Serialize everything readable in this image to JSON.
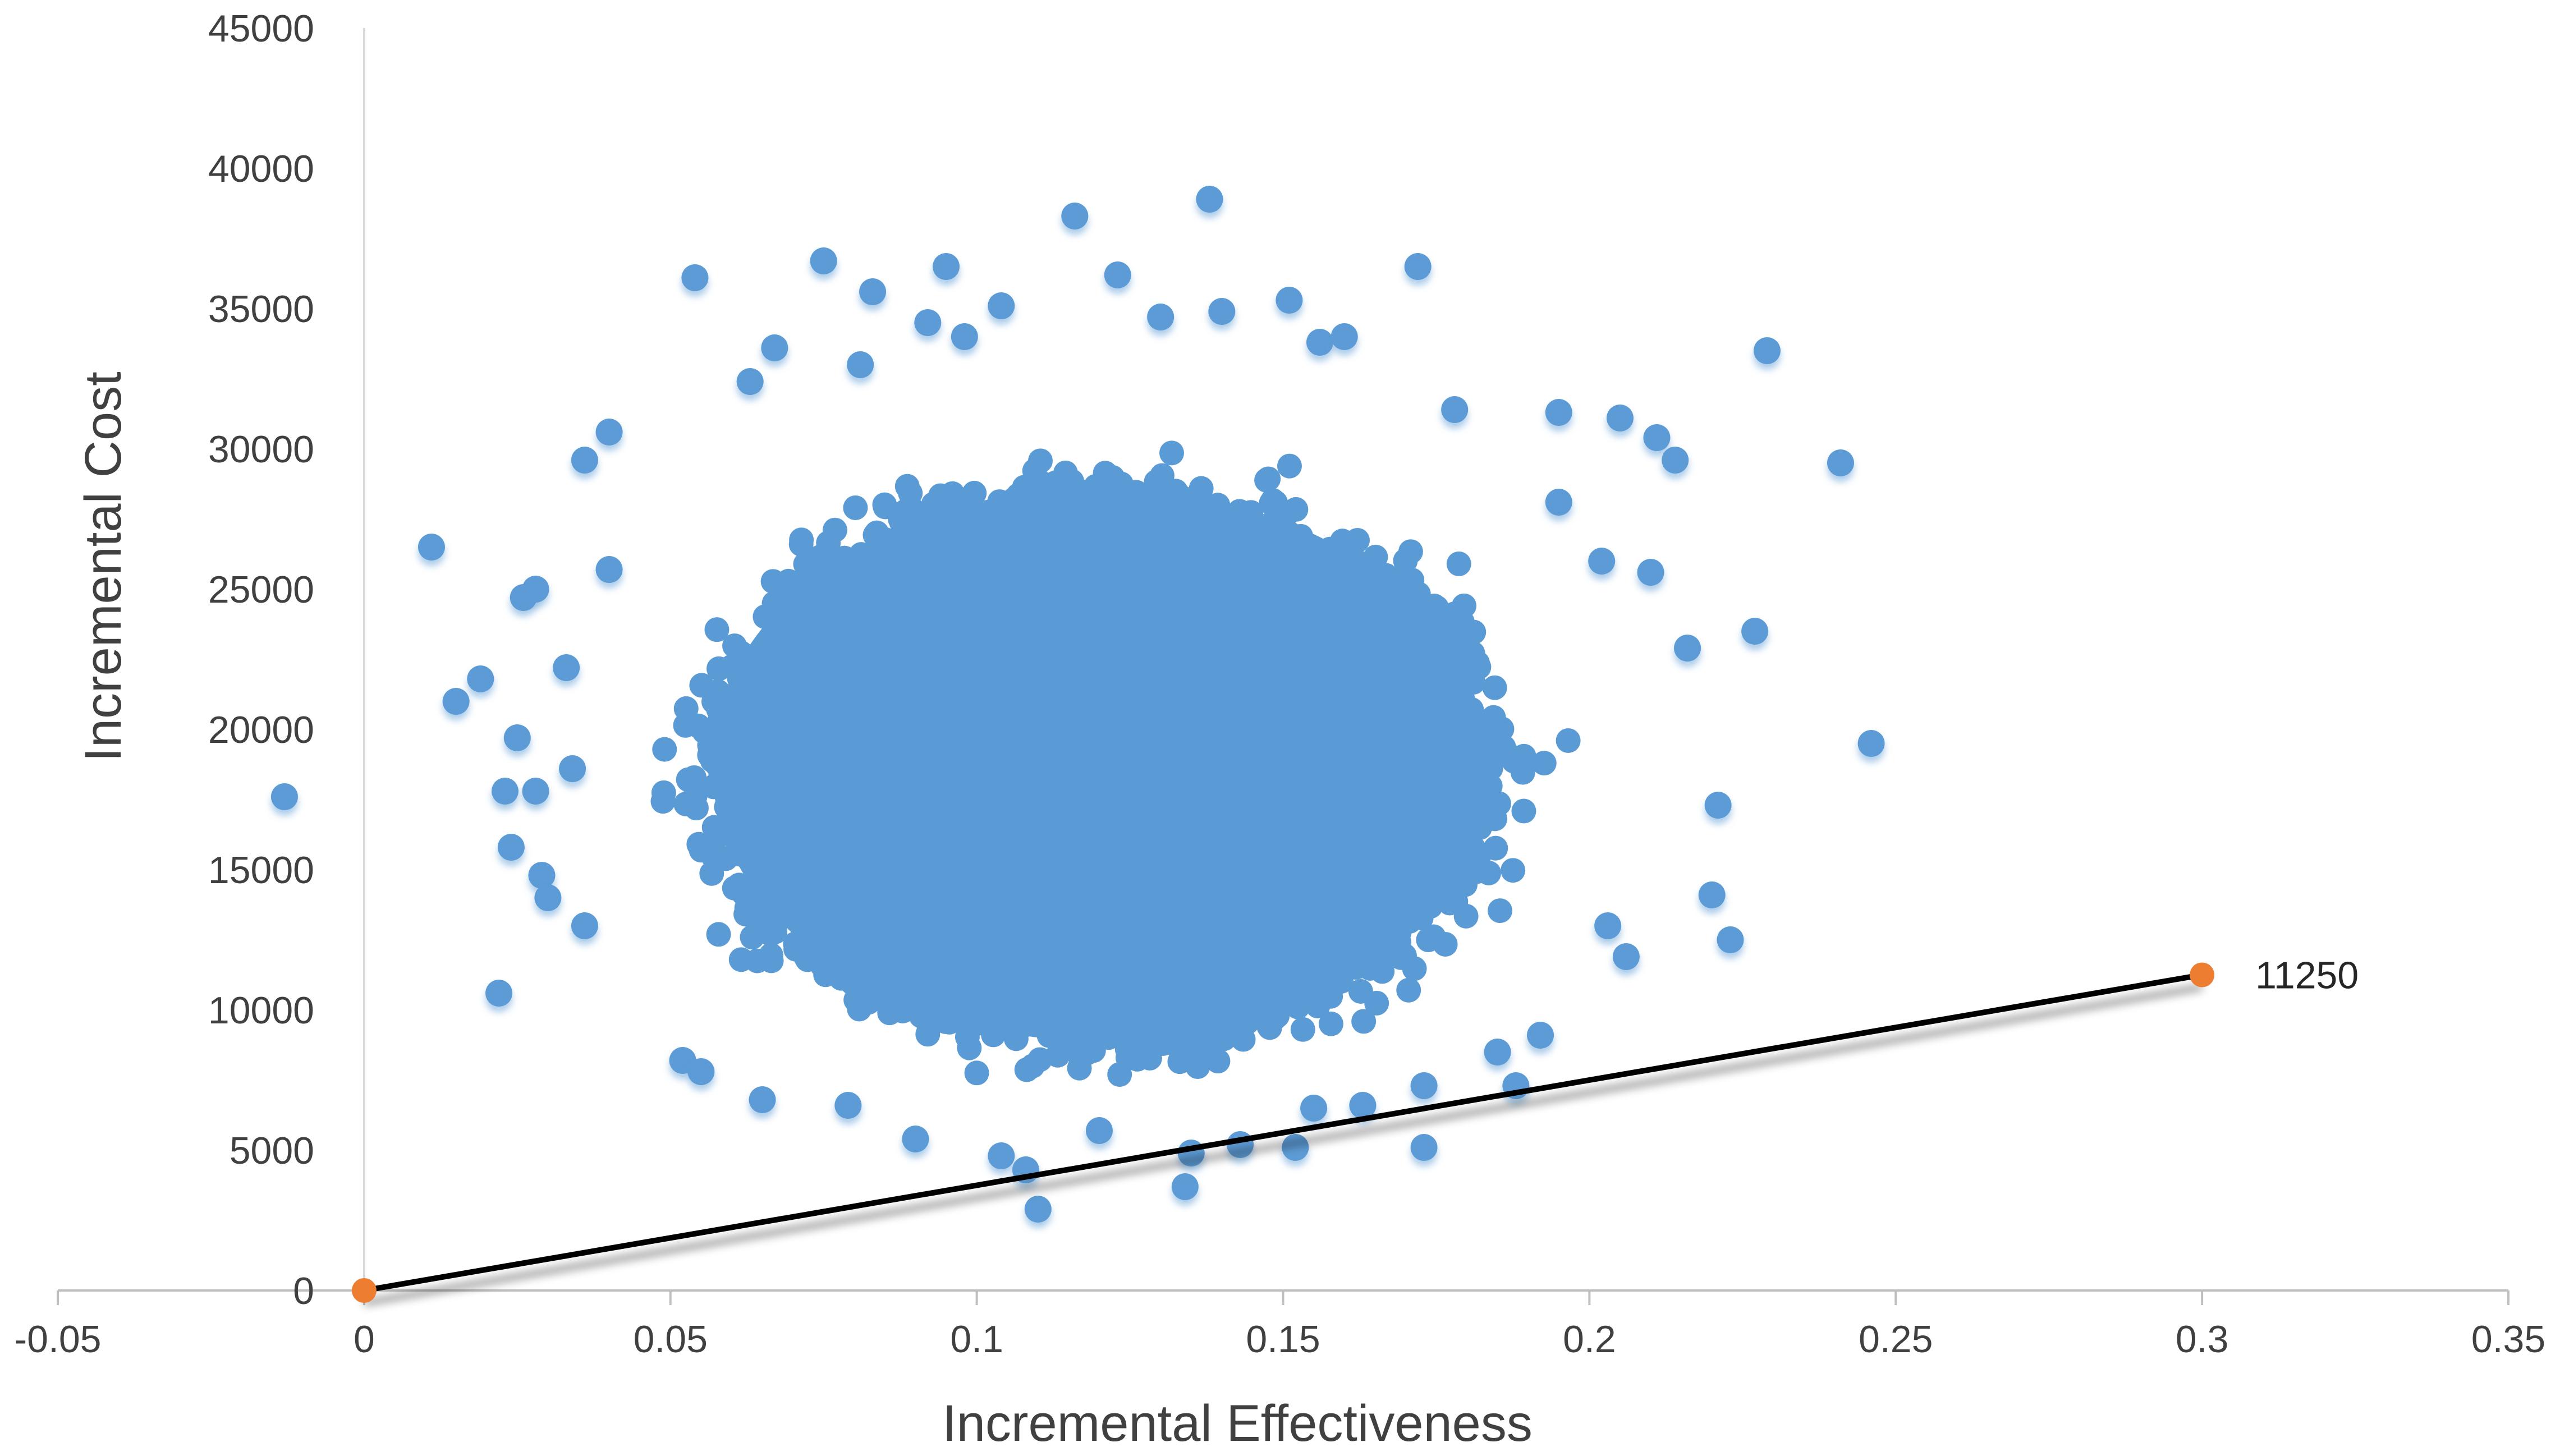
{
  "chart_data": {
    "type": "scatter",
    "title": "",
    "xlabel": "Incremental Effectiveness",
    "ylabel": "Incremental Cost",
    "xlim": [
      -0.05,
      0.35
    ],
    "ylim": [
      0,
      45000
    ],
    "x_ticks": [
      "-0.05",
      "0",
      "0.05",
      "0.1",
      "0.15",
      "0.2",
      "0.25",
      "0.3",
      "0.35"
    ],
    "y_ticks": [
      "0",
      "5000",
      "10000",
      "15000",
      "20000",
      "25000",
      "30000",
      "35000",
      "40000",
      "45000"
    ],
    "grid": false,
    "legend": "none",
    "colors": {
      "scatter": "#5b9bd5",
      "threshold_line": "#000000",
      "threshold_points": "#ed7d31"
    },
    "series": [
      {
        "type": "scatter",
        "description_points": "outlying simulated points (dense cloud centred near x=0.12, y=18000)",
        "cloud": {
          "cx": 0.12,
          "cy": 18750,
          "rx": 0.068,
          "ry": 10600
        },
        "points": [
          [
            -0.013,
            17600
          ],
          [
            0.011,
            26500
          ],
          [
            0.015,
            21000
          ],
          [
            0.019,
            21800
          ],
          [
            0.022,
            10600
          ],
          [
            0.023,
            17800
          ],
          [
            0.024,
            15800
          ],
          [
            0.025,
            19700
          ],
          [
            0.026,
            24700
          ],
          [
            0.028,
            25000
          ],
          [
            0.028,
            17800
          ],
          [
            0.029,
            14800
          ],
          [
            0.03,
            14000
          ],
          [
            0.033,
            22200
          ],
          [
            0.034,
            18600
          ],
          [
            0.036,
            29600
          ],
          [
            0.036,
            13000
          ],
          [
            0.04,
            30600
          ],
          [
            0.04,
            25700
          ],
          [
            0.052,
            8200
          ],
          [
            0.054,
            36100
          ],
          [
            0.055,
            7800
          ],
          [
            0.063,
            32400
          ],
          [
            0.065,
            6800
          ],
          [
            0.067,
            33600
          ],
          [
            0.075,
            36700
          ],
          [
            0.079,
            6600
          ],
          [
            0.081,
            33000
          ],
          [
            0.083,
            35600
          ],
          [
            0.09,
            5400
          ],
          [
            0.092,
            34500
          ],
          [
            0.095,
            36500
          ],
          [
            0.098,
            34000
          ],
          [
            0.104,
            35100
          ],
          [
            0.104,
            4800
          ],
          [
            0.108,
            4300
          ],
          [
            0.11,
            2900
          ],
          [
            0.116,
            38300
          ],
          [
            0.12,
            5700
          ],
          [
            0.123,
            36200
          ],
          [
            0.13,
            34700
          ],
          [
            0.134,
            3700
          ],
          [
            0.135,
            4900
          ],
          [
            0.138,
            38900
          ],
          [
            0.14,
            34900
          ],
          [
            0.143,
            5200
          ],
          [
            0.151,
            35300
          ],
          [
            0.152,
            5100
          ],
          [
            0.155,
            6500
          ],
          [
            0.156,
            33800
          ],
          [
            0.16,
            34000
          ],
          [
            0.163,
            6600
          ],
          [
            0.172,
            36500
          ],
          [
            0.173,
            5100
          ],
          [
            0.173,
            7300
          ],
          [
            0.178,
            31400
          ],
          [
            0.185,
            8500
          ],
          [
            0.188,
            7300
          ],
          [
            0.192,
            9100
          ],
          [
            0.195,
            28100
          ],
          [
            0.195,
            31300
          ],
          [
            0.202,
            26000
          ],
          [
            0.203,
            13000
          ],
          [
            0.205,
            31100
          ],
          [
            0.206,
            11900
          ],
          [
            0.21,
            25600
          ],
          [
            0.211,
            30400
          ],
          [
            0.214,
            29600
          ],
          [
            0.216,
            22900
          ],
          [
            0.22,
            14100
          ],
          [
            0.221,
            17300
          ],
          [
            0.223,
            12500
          ],
          [
            0.227,
            23500
          ],
          [
            0.229,
            33500
          ],
          [
            0.241,
            29500
          ],
          [
            0.246,
            19500
          ]
        ]
      },
      {
        "type": "line",
        "points": [
          [
            0,
            0
          ],
          [
            0.3,
            11250
          ]
        ],
        "data_label": "11250"
      }
    ]
  }
}
